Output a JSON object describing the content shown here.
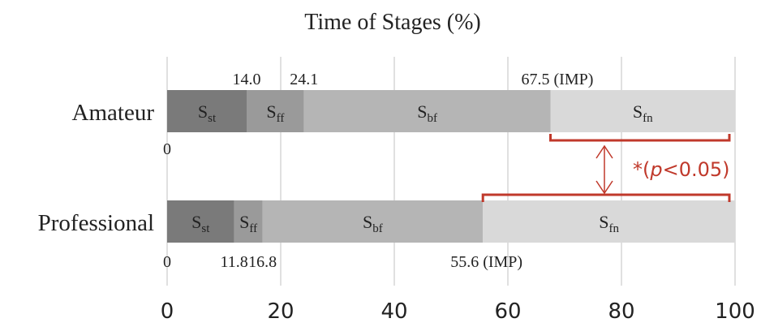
{
  "chart_data": {
    "type": "bar",
    "orientation": "horizontal",
    "stacked": true,
    "title": "Time of Stages (%)",
    "xlabel": "",
    "ylabel": "",
    "xlim": [
      0,
      100
    ],
    "x_ticks": [
      "0",
      "20",
      "40",
      "60",
      "80",
      "100"
    ],
    "grid": true,
    "legend": "none",
    "categories": [
      "Amateur",
      "Professional"
    ],
    "stage_names": [
      "st",
      "ff",
      "bf",
      "fn"
    ],
    "stage_colors": [
      "#7a7a7a",
      "#9a9a9a",
      "#b5b5b5",
      "#d9d9d9"
    ],
    "series": [
      {
        "category": "Amateur",
        "boundaries": [
          0,
          14.0,
          24.1,
          67.5,
          100
        ],
        "labels": [
          "0",
          "14.0",
          "24.1",
          "67.5 (IMP)"
        ]
      },
      {
        "category": "Professional",
        "boundaries": [
          0,
          11.8,
          16.8,
          55.6,
          100
        ],
        "labels": [
          "0",
          "11.8",
          "16.8",
          "55.6 (IMP)"
        ]
      }
    ],
    "annotation": {
      "text_prefix": "*(",
      "text_italic": "p",
      "text_suffix": "<0.05)",
      "color": "#c0392b"
    }
  }
}
